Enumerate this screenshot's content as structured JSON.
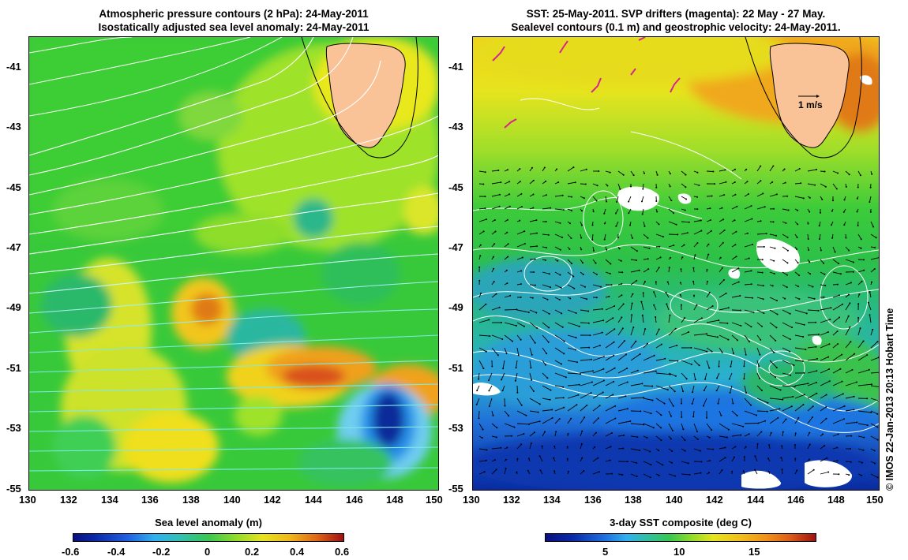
{
  "left_panel": {
    "title_line1": "Atmospheric pressure contours (2 hPa): 24-May-2011",
    "title_line2": "Isostatically adjusted sea level anomaly: 24-May-2011",
    "colorbar_title": "Sea level anomaly (m)",
    "colorbar_ticks": [
      "-0.6",
      "-0.4",
      "-0.2",
      "0",
      "0.2",
      "0.4",
      "0.6"
    ],
    "colorbar_range": [
      -0.6,
      0.6
    ]
  },
  "right_panel": {
    "title_line1": "SST: 25-May-2011. SVP drifters (magenta): 22 May - 27 May.",
    "title_line2": "Sealevel contours (0.1 m) and geostrophic velocity: 24-May-2011.",
    "colorbar_title": "3-day SST composite (deg C)",
    "colorbar_ticks": [
      "5",
      "10",
      "15"
    ],
    "colorbar_range": [
      1,
      19
    ],
    "velocity_scale_label": "1 m/s"
  },
  "axes": {
    "lon_range": [
      130,
      150
    ],
    "lat_range": [
      -55,
      -40
    ],
    "x_ticks": [
      "130",
      "132",
      "134",
      "136",
      "138",
      "140",
      "142",
      "144",
      "146",
      "148",
      "150"
    ],
    "y_ticks": [
      "-41",
      "-43",
      "-45",
      "-47",
      "-49",
      "-51",
      "-53",
      "-55"
    ]
  },
  "credit": "© IMOS 22-Jan-2013 20:13 Hobart Time",
  "colors": {
    "land": "#f9c397",
    "drifters": "#d4268f",
    "contours": "#ffffff",
    "pressure_contours": "#7fe9e9"
  }
}
